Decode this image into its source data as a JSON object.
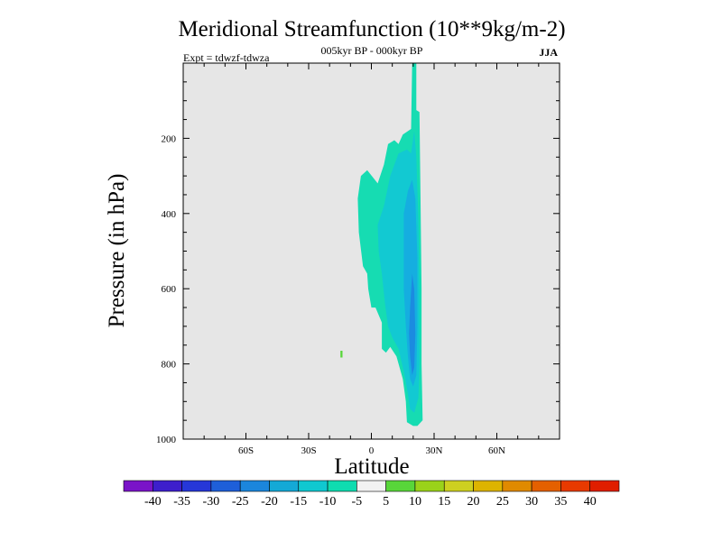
{
  "chart_data": {
    "type": "heatmap",
    "subtype": "filled-contour",
    "title": "Meridional Streamfunction (10**9kg/m-2)",
    "subtitle": "005kyr BP - 000kyr BP",
    "experiment_label": "Expt = tdwzf-tdwza",
    "season": "JJA",
    "xlabel": "Latitude",
    "ylabel": "Pressure (in hPa)",
    "xlim": [
      -90,
      90
    ],
    "ylim": [
      1000,
      0
    ],
    "x_ticks": [
      {
        "value": -60,
        "label": "60S"
      },
      {
        "value": -30,
        "label": "30S"
      },
      {
        "value": 0,
        "label": "0"
      },
      {
        "value": 30,
        "label": "30N"
      },
      {
        "value": 60,
        "label": "60N"
      }
    ],
    "y_ticks": [
      {
        "value": 200,
        "label": "200"
      },
      {
        "value": 400,
        "label": "400"
      },
      {
        "value": 600,
        "label": "600"
      },
      {
        "value": 800,
        "label": "800"
      },
      {
        "value": 1000,
        "label": "1000"
      }
    ],
    "background_color": "#e6e6e6",
    "colorbar": {
      "labels": [
        "-40",
        "-35",
        "-30",
        "-25",
        "-20",
        "-15",
        "-10",
        "-5",
        "5",
        "10",
        "15",
        "20",
        "25",
        "30",
        "35",
        "40"
      ],
      "colors": [
        "#7a14c8",
        "#3d1fcc",
        "#2637d8",
        "#1e5fd9",
        "#1b86dc",
        "#14a9d6",
        "#10c8d0",
        "#0fdcb0",
        "#f2f2f2",
        "#58d63a",
        "#9ad21a",
        "#cdd020",
        "#ddb400",
        "#e08a00",
        "#e46000",
        "#e83a00",
        "#e01e00"
      ]
    },
    "regions": [
      {
        "name": "outer -10 to -5",
        "color": "#16dcb2",
        "points": [
          [
            -5,
            300
          ],
          [
            -2,
            285
          ],
          [
            3,
            320
          ],
          [
            6,
            270
          ],
          [
            8,
            215
          ],
          [
            11,
            205
          ],
          [
            13,
            215
          ],
          [
            15,
            190
          ],
          [
            19,
            175
          ],
          [
            19.5,
            0
          ],
          [
            21.5,
            0
          ],
          [
            21.5,
            125
          ],
          [
            23,
            130
          ],
          [
            23.5,
            350
          ],
          [
            24,
            600
          ],
          [
            24,
            800
          ],
          [
            24.5,
            950
          ],
          [
            22,
            965
          ],
          [
            20,
            965
          ],
          [
            17,
            955
          ],
          [
            16.5,
            900
          ],
          [
            15,
            840
          ],
          [
            12,
            780
          ],
          [
            9,
            755
          ],
          [
            7,
            770
          ],
          [
            5,
            760
          ],
          [
            5,
            690
          ],
          [
            2,
            650
          ],
          [
            0,
            650
          ],
          [
            -1.5,
            600
          ],
          [
            -2,
            560
          ],
          [
            -4,
            540
          ],
          [
            -6,
            450
          ],
          [
            -6.5,
            360
          ]
        ]
      },
      {
        "name": "mid -15 to -10",
        "color": "#12c9d2",
        "points": [
          [
            3,
            430
          ],
          [
            6,
            380
          ],
          [
            9,
            300
          ],
          [
            13,
            240
          ],
          [
            17,
            230
          ],
          [
            19,
            240
          ],
          [
            20.5,
            180
          ],
          [
            21.5,
            250
          ],
          [
            22.5,
            420
          ],
          [
            23,
            600
          ],
          [
            23,
            800
          ],
          [
            22.5,
            890
          ],
          [
            20.5,
            930
          ],
          [
            18.5,
            920
          ],
          [
            17.5,
            880
          ],
          [
            15.5,
            820
          ],
          [
            13,
            760
          ],
          [
            10,
            730
          ],
          [
            8,
            700
          ],
          [
            6.5,
            640
          ],
          [
            5,
            560
          ],
          [
            3.5,
            500
          ]
        ]
      },
      {
        "name": "inner -20 to -15",
        "color": "#15aee0",
        "points": [
          [
            15.5,
            400
          ],
          [
            17.5,
            340
          ],
          [
            19.5,
            310
          ],
          [
            21,
            360
          ],
          [
            22,
            520
          ],
          [
            22,
            700
          ],
          [
            21.5,
            830
          ],
          [
            20,
            860
          ],
          [
            18.5,
            840
          ],
          [
            17.5,
            780
          ],
          [
            16.5,
            700
          ],
          [
            15.5,
            600
          ]
        ]
      },
      {
        "name": "core -25 to -20",
        "color": "#1b8be0",
        "points": [
          [
            18.5,
            650
          ],
          [
            19.5,
            560
          ],
          [
            20.5,
            600
          ],
          [
            21,
            720
          ],
          [
            20.5,
            810
          ],
          [
            19.5,
            830
          ],
          [
            18.5,
            780
          ],
          [
            18,
            720
          ]
        ]
      },
      {
        "name": "positive 5 to 10",
        "color": "#58d63a",
        "points": [
          [
            -14.8,
            765
          ],
          [
            -13.8,
            765
          ],
          [
            -13.8,
            783
          ],
          [
            -14.8,
            783
          ]
        ]
      }
    ]
  }
}
